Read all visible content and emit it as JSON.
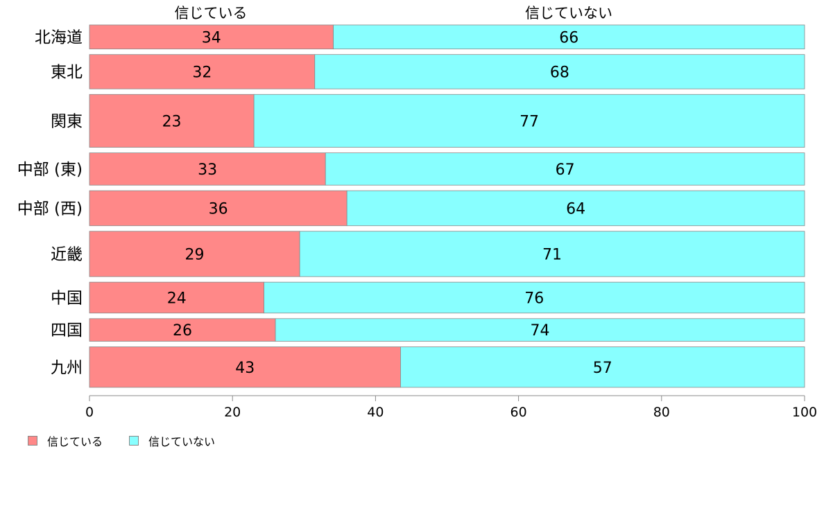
{
  "chart_data": {
    "type": "bar",
    "orientation": "horizontal",
    "stacked": true,
    "categories": [
      "北海道",
      "東北",
      "関東",
      "中部 (東)",
      "中部 (西)",
      "近畿",
      "中国",
      "四国",
      "九州"
    ],
    "bar_weights": [
      35,
      50,
      77,
      47,
      51,
      66,
      45,
      33,
      59
    ],
    "series": [
      {
        "name": "信じている",
        "color": "#ff8888",
        "values": [
          34,
          32,
          23,
          33,
          36,
          29,
          24,
          26,
          43
        ],
        "exact": [
          34.1,
          31.5,
          23,
          33,
          36,
          29.4,
          24.4,
          26,
          43.5
        ]
      },
      {
        "name": "信じていない",
        "color": "#88ffff",
        "values": [
          66,
          68,
          77,
          67,
          64,
          71,
          76,
          74,
          57
        ]
      }
    ],
    "xlim": [
      0,
      100
    ],
    "xticks": [
      0,
      20,
      40,
      60,
      80,
      100
    ],
    "legend_position": "bottom-left",
    "grid": false
  },
  "legend": [
    {
      "label": "信じている",
      "color": "#ff8888"
    },
    {
      "label": "信じていない",
      "color": "#88ffff"
    }
  ]
}
